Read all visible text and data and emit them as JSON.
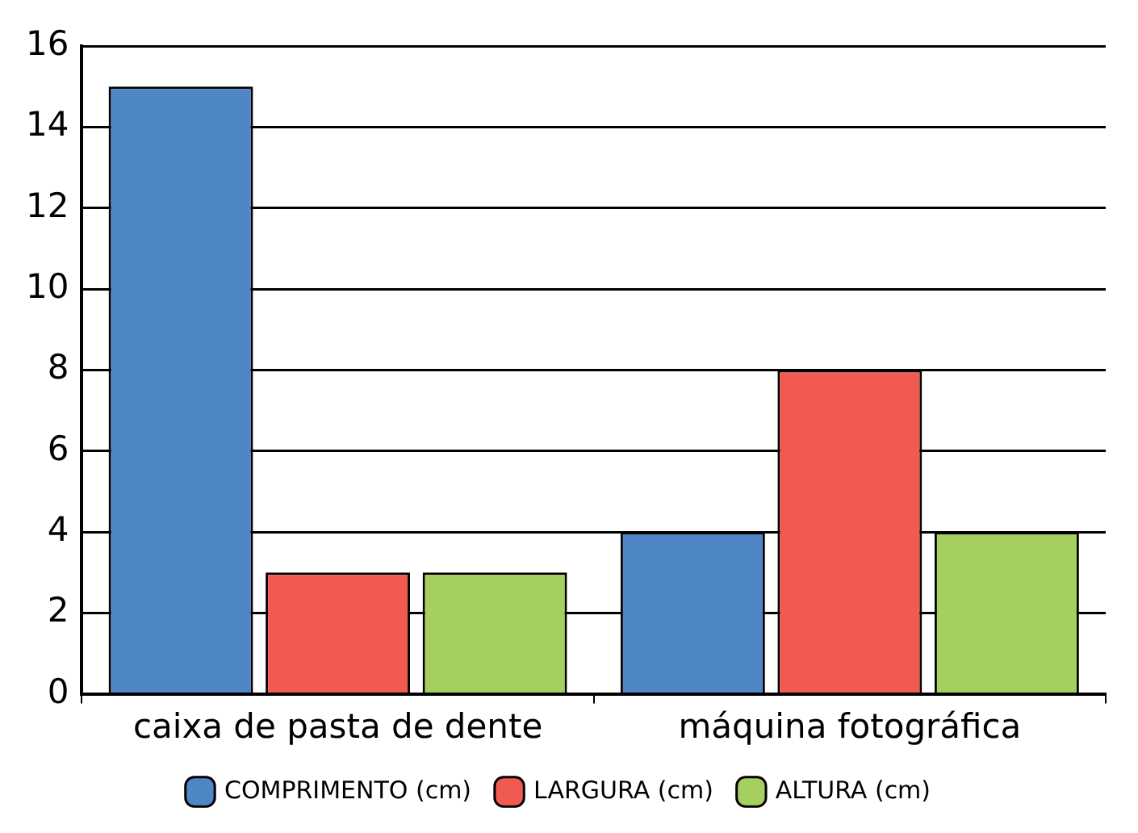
{
  "chart_data": {
    "type": "bar",
    "categories": [
      "caixa de pasta de dente",
      "máquina fotográfica"
    ],
    "series": [
      {
        "name": "COMPRIMENTO (cm)",
        "color": "#4f86c6",
        "values": [
          15,
          4
        ]
      },
      {
        "name": "LARGURA (cm)",
        "color": "#f05a50",
        "values": [
          3,
          8
        ]
      },
      {
        "name": "ALTURA (cm)",
        "color": "#a5cf5e",
        "values": [
          3,
          4
        ]
      }
    ],
    "ylim": [
      0,
      16
    ],
    "yticks": [
      0,
      2,
      4,
      6,
      8,
      10,
      12,
      14,
      16
    ],
    "grid": "y",
    "legend": "bottom"
  }
}
